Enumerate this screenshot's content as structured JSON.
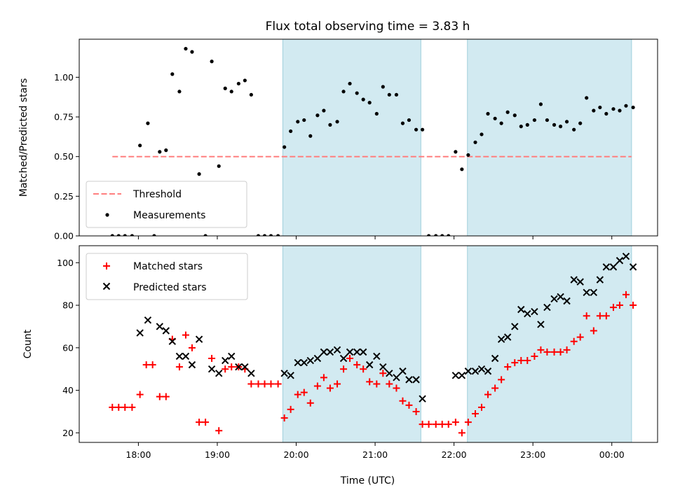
{
  "chart_data": {
    "title": "Flux total observing time = 3.83 h",
    "xlabel": "Time (UTC)",
    "x_unit": "hours UTC (past midnight values continue >24)",
    "xlim": [
      17.25,
      24.58
    ],
    "x_ticks": [
      18,
      19,
      20,
      21,
      22,
      23,
      24
    ],
    "x_tick_labels": [
      "18:00",
      "19:00",
      "20:00",
      "21:00",
      "22:00",
      "23:00",
      "00:00"
    ],
    "shaded_intervals": [
      [
        19.83,
        21.58
      ],
      [
        22.17,
        24.25
      ]
    ],
    "shade_color": "#add8e6",
    "panels": [
      {
        "type": "scatter",
        "ylabel": "Matched/Predicted stars",
        "ylim": [
          0,
          1.24
        ],
        "y_ticks": [
          0,
          0.25,
          0.5,
          0.75,
          1.0
        ],
        "y_tick_labels": [
          "0.00",
          "0.25",
          "0.50",
          "0.75",
          "1.00"
        ],
        "threshold": {
          "name": "Threshold",
          "value": 0.5,
          "x_range": [
            17.67,
            24.25
          ],
          "color": "#ff7f7f"
        },
        "series": [
          {
            "name": "Measurements",
            "color": "#000000",
            "marker": "dot",
            "points": [
              [
                17.67,
                0.0
              ],
              [
                17.75,
                0.0
              ],
              [
                17.83,
                0.0
              ],
              [
                17.92,
                0.0
              ],
              [
                18.02,
                0.57
              ],
              [
                18.12,
                0.71
              ],
              [
                18.2,
                0.0
              ],
              [
                18.27,
                0.53
              ],
              [
                18.35,
                0.54
              ],
              [
                18.43,
                1.02
              ],
              [
                18.52,
                0.91
              ],
              [
                18.6,
                1.18
              ],
              [
                18.68,
                1.16
              ],
              [
                18.77,
                0.39
              ],
              [
                18.85,
                0.0
              ],
              [
                18.93,
                1.1
              ],
              [
                19.02,
                0.44
              ],
              [
                19.1,
                0.93
              ],
              [
                19.18,
                0.91
              ],
              [
                19.27,
                0.96
              ],
              [
                19.35,
                0.98
              ],
              [
                19.43,
                0.89
              ],
              [
                19.52,
                0.0
              ],
              [
                19.6,
                0.0
              ],
              [
                19.68,
                0.0
              ],
              [
                19.77,
                0.0
              ],
              [
                19.85,
                0.56
              ],
              [
                19.93,
                0.66
              ],
              [
                20.02,
                0.72
              ],
              [
                20.1,
                0.73
              ],
              [
                20.18,
                0.63
              ],
              [
                20.27,
                0.76
              ],
              [
                20.35,
                0.79
              ],
              [
                20.43,
                0.7
              ],
              [
                20.52,
                0.72
              ],
              [
                20.6,
                0.91
              ],
              [
                20.68,
                0.96
              ],
              [
                20.77,
                0.9
              ],
              [
                20.85,
                0.86
              ],
              [
                20.93,
                0.84
              ],
              [
                21.02,
                0.77
              ],
              [
                21.1,
                0.94
              ],
              [
                21.18,
                0.89
              ],
              [
                21.27,
                0.89
              ],
              [
                21.35,
                0.71
              ],
              [
                21.43,
                0.73
              ],
              [
                21.52,
                0.67
              ],
              [
                21.6,
                0.67
              ],
              [
                21.68,
                0.0
              ],
              [
                21.77,
                0.0
              ],
              [
                21.85,
                0.0
              ],
              [
                21.93,
                0.0
              ],
              [
                22.02,
                0.53
              ],
              [
                22.1,
                0.42
              ],
              [
                22.18,
                0.51
              ],
              [
                22.27,
                0.59
              ],
              [
                22.35,
                0.64
              ],
              [
                22.43,
                0.77
              ],
              [
                22.52,
                0.74
              ],
              [
                22.6,
                0.71
              ],
              [
                22.68,
                0.78
              ],
              [
                22.77,
                0.76
              ],
              [
                22.85,
                0.69
              ],
              [
                22.93,
                0.7
              ],
              [
                23.02,
                0.73
              ],
              [
                23.1,
                0.83
              ],
              [
                23.18,
                0.73
              ],
              [
                23.27,
                0.7
              ],
              [
                23.35,
                0.69
              ],
              [
                23.43,
                0.72
              ],
              [
                23.52,
                0.67
              ],
              [
                23.6,
                0.71
              ],
              [
                23.68,
                0.87
              ],
              [
                23.77,
                0.79
              ],
              [
                23.85,
                0.81
              ],
              [
                23.93,
                0.77
              ],
              [
                24.02,
                0.8
              ],
              [
                24.1,
                0.79
              ],
              [
                24.18,
                0.82
              ],
              [
                24.27,
                0.81
              ]
            ]
          }
        ],
        "legend": {
          "position": "lower left",
          "entries": [
            "Threshold",
            "Measurements"
          ]
        }
      },
      {
        "type": "scatter",
        "ylabel": "Count",
        "ylim": [
          15.5,
          108
        ],
        "y_ticks": [
          20,
          40,
          60,
          80,
          100
        ],
        "y_tick_labels": [
          "20",
          "40",
          "60",
          "80",
          "100"
        ],
        "series": [
          {
            "name": "Matched stars",
            "color": "#ff0000",
            "marker": "plus",
            "points": [
              [
                17.67,
                32
              ],
              [
                17.75,
                32
              ],
              [
                17.83,
                32
              ],
              [
                17.92,
                32
              ],
              [
                18.02,
                38
              ],
              [
                18.1,
                52
              ],
              [
                18.18,
                52
              ],
              [
                18.27,
                37
              ],
              [
                18.35,
                37
              ],
              [
                18.43,
                64
              ],
              [
                18.52,
                51
              ],
              [
                18.6,
                66
              ],
              [
                18.68,
                60
              ],
              [
                18.77,
                25
              ],
              [
                18.85,
                25
              ],
              [
                18.93,
                55
              ],
              [
                19.02,
                21
              ],
              [
                19.1,
                50
              ],
              [
                19.18,
                51
              ],
              [
                19.27,
                51
              ],
              [
                19.35,
                50
              ],
              [
                19.43,
                43
              ],
              [
                19.52,
                43
              ],
              [
                19.6,
                43
              ],
              [
                19.68,
                43
              ],
              [
                19.77,
                43
              ],
              [
                19.85,
                27
              ],
              [
                19.93,
                31
              ],
              [
                20.02,
                38
              ],
              [
                20.1,
                39
              ],
              [
                20.18,
                34
              ],
              [
                20.27,
                42
              ],
              [
                20.35,
                46
              ],
              [
                20.43,
                41
              ],
              [
                20.52,
                43
              ],
              [
                20.6,
                50
              ],
              [
                20.68,
                55
              ],
              [
                20.77,
                52
              ],
              [
                20.85,
                50
              ],
              [
                20.93,
                44
              ],
              [
                21.02,
                43
              ],
              [
                21.1,
                48
              ],
              [
                21.18,
                43
              ],
              [
                21.27,
                41
              ],
              [
                21.35,
                35
              ],
              [
                21.43,
                33
              ],
              [
                21.52,
                30
              ],
              [
                21.6,
                24
              ],
              [
                21.68,
                24
              ],
              [
                21.77,
                24
              ],
              [
                21.85,
                24
              ],
              [
                21.93,
                24
              ],
              [
                22.02,
                25
              ],
              [
                22.1,
                20
              ],
              [
                22.18,
                25
              ],
              [
                22.27,
                29
              ],
              [
                22.35,
                32
              ],
              [
                22.43,
                38
              ],
              [
                22.52,
                41
              ],
              [
                22.6,
                45
              ],
              [
                22.68,
                51
              ],
              [
                22.77,
                53
              ],
              [
                22.85,
                54
              ],
              [
                22.93,
                54
              ],
              [
                23.02,
                56
              ],
              [
                23.1,
                59
              ],
              [
                23.18,
                58
              ],
              [
                23.27,
                58
              ],
              [
                23.35,
                58
              ],
              [
                23.43,
                59
              ],
              [
                23.52,
                63
              ],
              [
                23.6,
                65
              ],
              [
                23.68,
                75
              ],
              [
                23.77,
                68
              ],
              [
                23.85,
                75
              ],
              [
                23.93,
                75
              ],
              [
                24.02,
                79
              ],
              [
                24.1,
                80
              ],
              [
                24.18,
                85
              ],
              [
                24.27,
                80
              ]
            ]
          },
          {
            "name": "Predicted stars",
            "color": "#000000",
            "marker": "x",
            "points": [
              [
                18.02,
                67
              ],
              [
                18.12,
                73
              ],
              [
                18.27,
                70
              ],
              [
                18.35,
                68
              ],
              [
                18.43,
                63
              ],
              [
                18.52,
                56
              ],
              [
                18.6,
                56
              ],
              [
                18.68,
                52
              ],
              [
                18.77,
                64
              ],
              [
                18.93,
                50
              ],
              [
                19.02,
                48
              ],
              [
                19.1,
                54
              ],
              [
                19.18,
                56
              ],
              [
                19.27,
                51
              ],
              [
                19.35,
                51
              ],
              [
                19.43,
                48
              ],
              [
                19.85,
                48
              ],
              [
                19.93,
                47
              ],
              [
                20.02,
                53
              ],
              [
                20.1,
                53
              ],
              [
                20.18,
                54
              ],
              [
                20.27,
                55
              ],
              [
                20.35,
                58
              ],
              [
                20.43,
                58
              ],
              [
                20.52,
                59
              ],
              [
                20.6,
                55
              ],
              [
                20.68,
                58
              ],
              [
                20.77,
                58
              ],
              [
                20.85,
                58
              ],
              [
                20.93,
                52
              ],
              [
                21.02,
                56
              ],
              [
                21.1,
                51
              ],
              [
                21.18,
                48
              ],
              [
                21.27,
                46
              ],
              [
                21.35,
                49
              ],
              [
                21.43,
                45
              ],
              [
                21.52,
                45
              ],
              [
                21.6,
                36
              ],
              [
                22.02,
                47
              ],
              [
                22.1,
                47
              ],
              [
                22.18,
                49
              ],
              [
                22.27,
                49
              ],
              [
                22.35,
                50
              ],
              [
                22.43,
                49
              ],
              [
                22.52,
                55
              ],
              [
                22.6,
                64
              ],
              [
                22.68,
                65
              ],
              [
                22.77,
                70
              ],
              [
                22.85,
                78
              ],
              [
                22.93,
                76
              ],
              [
                23.02,
                77
              ],
              [
                23.1,
                71
              ],
              [
                23.18,
                79
              ],
              [
                23.27,
                83
              ],
              [
                23.35,
                84
              ],
              [
                23.43,
                82
              ],
              [
                23.52,
                92
              ],
              [
                23.6,
                91
              ],
              [
                23.68,
                86
              ],
              [
                23.77,
                86
              ],
              [
                23.85,
                92
              ],
              [
                23.93,
                98
              ],
              [
                24.02,
                98
              ],
              [
                24.1,
                101
              ],
              [
                24.18,
                103
              ],
              [
                24.27,
                98
              ]
            ]
          }
        ],
        "legend": {
          "position": "upper left",
          "entries": [
            "Matched stars",
            "Predicted stars"
          ]
        }
      }
    ]
  }
}
